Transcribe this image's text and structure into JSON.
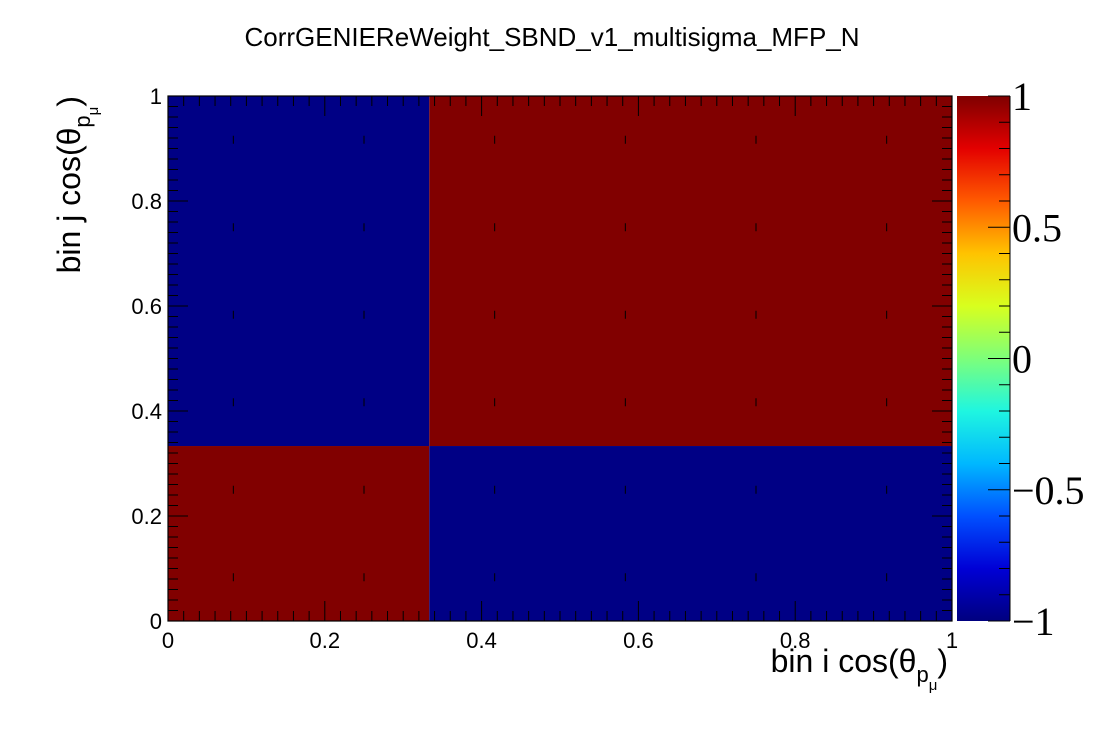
{
  "chart_data": {
    "type": "heatmap",
    "title": "CorrGENIEReWeight_SBND_v1_multisigma_MFP_N",
    "xlabel": {
      "main": "bin i cos(θ",
      "sub": "p",
      "subsub": "μ",
      "close": ")"
    },
    "ylabel": {
      "main": "bin j cos(θ",
      "sub": "p",
      "subsub": "μ",
      "close": ")"
    },
    "xlim": [
      0,
      1
    ],
    "ylim": [
      0,
      1
    ],
    "x_ticks": [
      {
        "value": 0,
        "label": "0"
      },
      {
        "value": 0.2,
        "label": "0.2"
      },
      {
        "value": 0.4,
        "label": "0.4"
      },
      {
        "value": 0.6,
        "label": "0.6"
      },
      {
        "value": 0.8,
        "label": "0.8"
      },
      {
        "value": 1,
        "label": "1"
      }
    ],
    "y_ticks": [
      {
        "value": 0,
        "label": "0"
      },
      {
        "value": 0.2,
        "label": "0.2"
      },
      {
        "value": 0.4,
        "label": "0.4"
      },
      {
        "value": 0.6,
        "label": "0.6"
      },
      {
        "value": 0.8,
        "label": "0.8"
      },
      {
        "value": 1,
        "label": "1"
      }
    ],
    "x_edges": [
      0,
      0.3333,
      1
    ],
    "y_edges": [
      0,
      0.3333,
      1
    ],
    "values": [
      [
        1,
        -1
      ],
      [
        -1,
        1
      ]
    ],
    "zlim": [
      -1,
      1
    ],
    "z_ticks": [
      {
        "value": -1,
        "label": "−1"
      },
      {
        "value": -0.5,
        "label": "−0.5"
      },
      {
        "value": 0,
        "label": "0"
      },
      {
        "value": 0.5,
        "label": "0.5"
      },
      {
        "value": 1,
        "label": "1"
      }
    ],
    "colormap": [
      "#00007f",
      "#0000d6",
      "#0050ff",
      "#00b8ff",
      "#1ff6e0",
      "#7dff7a",
      "#d8ff1e",
      "#ffc300",
      "#ff5a00",
      "#e30000",
      "#7f0000"
    ],
    "cell_colors": {
      "low": "#000085",
      "high": "#810000"
    }
  }
}
